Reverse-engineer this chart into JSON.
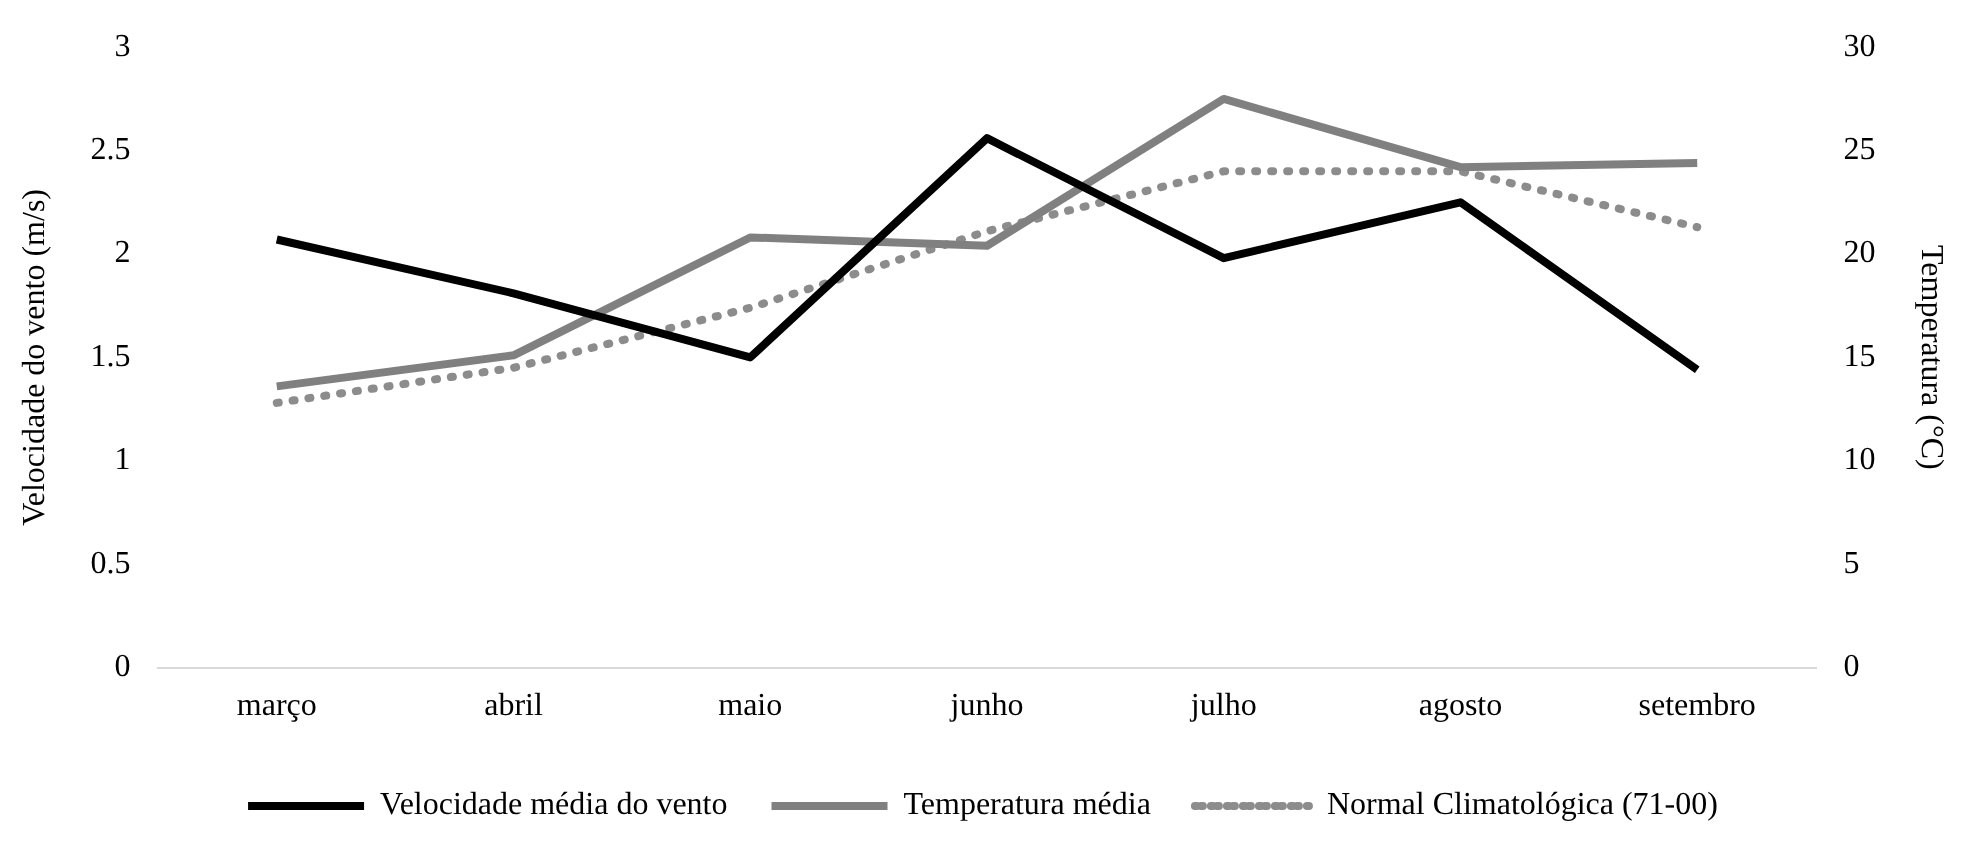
{
  "chart_data": {
    "type": "line",
    "ylabel": "Velocidade do vento (m/s)",
    "y2label": "Temperatura (°C)",
    "categories": [
      "março",
      "abril",
      "maio",
      "junho",
      "julho",
      "agosto",
      "setembro"
    ],
    "ylim": [
      0,
      3
    ],
    "yticks": [
      0,
      0.5,
      1,
      1.5,
      2,
      2.5,
      3
    ],
    "y2lim": [
      0,
      30
    ],
    "y2ticks": [
      0,
      5,
      10,
      15,
      20,
      25,
      30
    ],
    "grid": false,
    "legend": "bottom",
    "marker": "none",
    "series": [
      {
        "name": "Velocidade média do vento",
        "color": "#000000",
        "line_style": "solid",
        "values": [
          2.07,
          1.81,
          1.5,
          2.56,
          1.98,
          2.25,
          1.44
        ]
      },
      {
        "name": "Temperatura média",
        "color": "#808080",
        "line_style": "solid",
        "axis": "y2",
        "values": [
          13.6,
          15.1,
          20.8,
          20.4,
          27.5,
          24.2,
          24.4
        ]
      },
      {
        "name": "Normal Climatológica (71-00)",
        "color": "#8c8c8c",
        "line_style": "dotted",
        "axis": "y2",
        "values": [
          12.8,
          14.5,
          17.4,
          21.1,
          24.0,
          24.0,
          21.3
        ]
      }
    ]
  }
}
